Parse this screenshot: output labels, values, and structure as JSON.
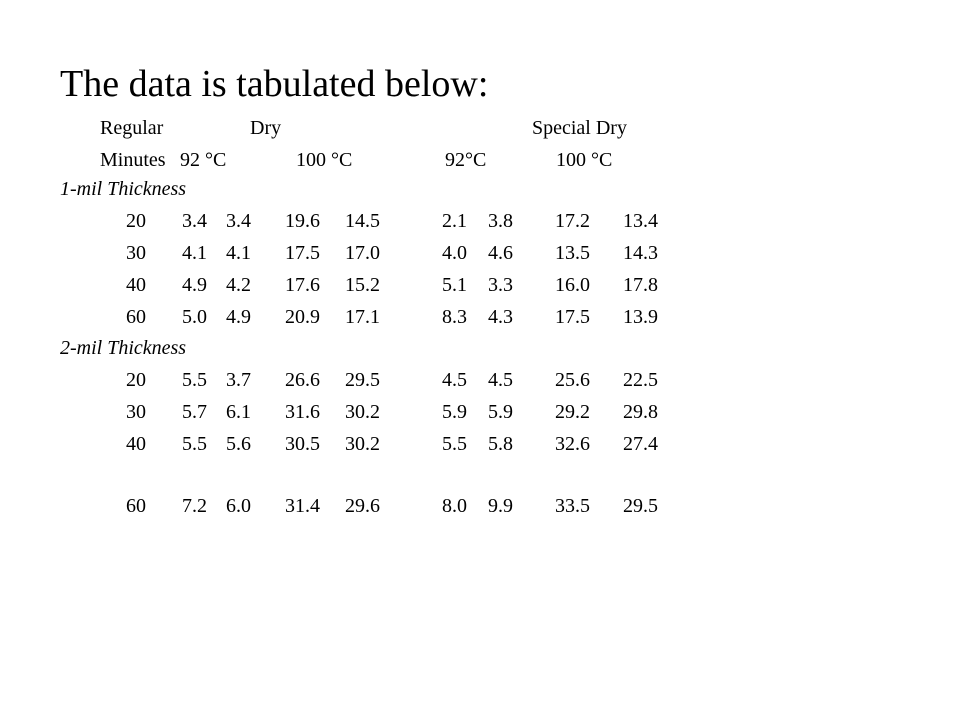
{
  "title": "The data is tabulated below:",
  "header_row1": {
    "regular": "Regular",
    "dry": "Dry",
    "special_dry": "Special Dry"
  },
  "header_row2": {
    "minutes": "Minutes",
    "c92_regular": "92 °C",
    "c100_regular": "100 °C",
    "c92_special": "92°C",
    "c100_special": "100 °C"
  },
  "sections": [
    {
      "label": "1-mil Thickness",
      "rows": [
        {
          "minutes": "20",
          "values": [
            "3.4",
            "3.4",
            "19.6",
            "14.5",
            "2.1",
            "3.8",
            "17.2",
            "13.4"
          ]
        },
        {
          "minutes": "30",
          "values": [
            "4.1",
            "4.1",
            "17.5",
            "17.0",
            "4.0",
            "4.6",
            "13.5",
            "14.3"
          ]
        },
        {
          "minutes": "40",
          "values": [
            "4.9",
            "4.2",
            "17.6",
            "15.2",
            "5.1",
            "3.3",
            "16.0",
            "17.8"
          ]
        },
        {
          "minutes": "60",
          "values": [
            "5.0",
            "4.9",
            "20.9",
            "17.1",
            "8.3",
            "4.3",
            "17.5",
            "13.9"
          ]
        }
      ]
    },
    {
      "label": "2-mil Thickness",
      "rows": [
        {
          "minutes": "20",
          "values": [
            "5.5",
            "3.7",
            "26.6",
            "29.5",
            "4.5",
            "4.5",
            "25.6",
            "22.5"
          ]
        },
        {
          "minutes": "30",
          "values": [
            "5.7",
            "6.1",
            "31.6",
            "30.2",
            "5.9",
            "5.9",
            "29.2",
            "29.8"
          ]
        },
        {
          "minutes": "40",
          "values": [
            "5.5",
            "5.6",
            "30.5",
            "30.2",
            "5.5",
            "5.8",
            "32.6",
            "27.4"
          ]
        },
        {
          "minutes": "60",
          "values": [
            "7.2",
            "6.0",
            "31.4",
            "29.6",
            "8.0",
            "9.9",
            "33.5",
            "29.5"
          ]
        }
      ]
    }
  ]
}
